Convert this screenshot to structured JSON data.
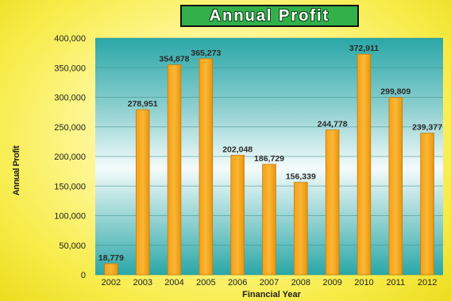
{
  "chart_data": {
    "type": "bar",
    "title": "Annual Profit",
    "xlabel": "Financial Year",
    "ylabel": "Annual Profit",
    "ylim": [
      0,
      400000
    ],
    "yticks": [
      0,
      50000,
      100000,
      150000,
      200000,
      250000,
      300000,
      350000,
      400000
    ],
    "ytick_labels": [
      "0",
      "50,000",
      "100,000",
      "150,000",
      "200,000",
      "250,000",
      "300,000",
      "350,000",
      "400,000"
    ],
    "categories": [
      "2002",
      "2003",
      "2004",
      "2005",
      "2006",
      "2007",
      "2008",
      "2009",
      "2010",
      "2011",
      "2012"
    ],
    "values": [
      18779,
      278951,
      354878,
      365273,
      202048,
      186729,
      156339,
      244778,
      372911,
      299809,
      239377
    ],
    "value_labels": [
      "18,779",
      "278,951",
      "354,878",
      "365,273",
      "202,048",
      "186,729",
      "156,339",
      "244,778",
      "372,911",
      "299,809",
      "239,377"
    ],
    "grid": true,
    "legend": "none",
    "colors": {
      "bar": "#f7a81c",
      "bar_edge": "#c77d0a",
      "plot_bg_edge": "#2aa7a7",
      "plot_bg_center": "#f4fbfb",
      "title_bg": "#34b04a",
      "page_bg": "#f7ec4a"
    }
  }
}
